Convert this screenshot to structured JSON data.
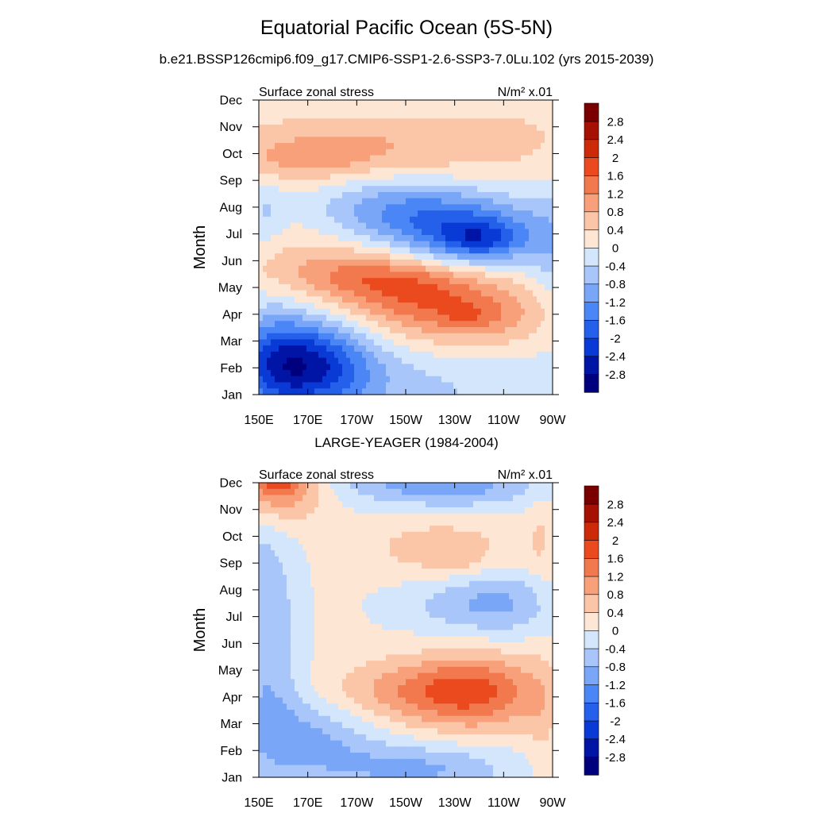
{
  "title": "Equatorial Pacific Ocean (5S-5N)",
  "subtitle": "b.e21.BSSP126cmip6.f09_g17.CMIP6-SSP1-2.6-SSP3-7.0Lu.102 (yrs 2015-2039)",
  "palette": {
    "levels": [
      "-2.8",
      "-2.4",
      "-2",
      "-1.6",
      "-1.2",
      "-0.8",
      "-0.4",
      "0",
      "0.4",
      "0.8",
      "1.2",
      "1.6",
      "2",
      "2.4",
      "2.8"
    ],
    "colors": [
      "#00007f",
      "#0015a6",
      "#0a3ad6",
      "#2460ea",
      "#4a86f5",
      "#7aa6f7",
      "#a8c6fa",
      "#d4e6fb",
      "#fde6d4",
      "#fbc5a8",
      "#f7a07a",
      "#f2784e",
      "#ea4a1e",
      "#cc2a08",
      "#a51204",
      "#7a0000"
    ]
  },
  "chart_data": [
    {
      "type": "heatmap",
      "panel_title": "",
      "left_label": "Surface zonal stress",
      "right_label": "N/m² x.01",
      "ylabel": "Month",
      "x_ticks": [
        "150E",
        "170E",
        "170W",
        "150W",
        "130W",
        "110W",
        "90W"
      ],
      "y_ticks": [
        "Jan",
        "Feb",
        "Mar",
        "Apr",
        "May",
        "Jun",
        "Jul",
        "Aug",
        "Sep",
        "Oct",
        "Nov",
        "Dec"
      ],
      "x_range_deg_east": [
        150,
        270
      ],
      "colorbar_levels": [
        "-2.8",
        "-2.4",
        "-2",
        "-1.6",
        "-1.2",
        "-0.8",
        "-0.4",
        "0",
        "0.4",
        "0.8",
        "1.2",
        "1.6",
        "2",
        "2.4",
        "2.8"
      ],
      "features": [
        {
          "lon": 200,
          "month": 1.2,
          "value": -0.6,
          "slon": 60,
          "smon": 1.2
        },
        {
          "lon": 170,
          "month": 2.0,
          "value": -1.5,
          "slon": 18,
          "smon": 1.1
        },
        {
          "lon": 168,
          "month": 2.5,
          "value": -0.9,
          "slon": 18,
          "smon": 1.2
        },
        {
          "lon": 155,
          "month": 2.6,
          "value": -0.6,
          "slon": 10,
          "smon": 1.6
        },
        {
          "lon": 210,
          "month": 5.0,
          "value": 1.1,
          "slon": 24,
          "smon": 0.9
        },
        {
          "lon": 236,
          "month": 4.0,
          "value": 1.0,
          "slon": 26,
          "smon": 0.9
        },
        {
          "lon": 236,
          "month": 3.9,
          "value": 0.35,
          "slon": 8,
          "smon": 0.35
        },
        {
          "lon": 200,
          "month": 5.3,
          "value": 0.3,
          "slon": 26,
          "smon": 0.45
        },
        {
          "lon": 178,
          "month": 5.8,
          "value": 0.6,
          "slon": 25,
          "smon": 0.8
        },
        {
          "lon": 236,
          "month": 7.0,
          "value": -1.4,
          "slon": 26,
          "smon": 1.0
        },
        {
          "lon": 240,
          "month": 6.8,
          "value": -1.0,
          "slon": 12,
          "smon": 0.5
        },
        {
          "lon": 215,
          "month": 7.8,
          "value": -0.8,
          "slon": 24,
          "smon": 0.9
        },
        {
          "lon": 195,
          "month": 8.2,
          "value": -0.4,
          "slon": 20,
          "smon": 0.8
        },
        {
          "lon": 168,
          "month": 9.8,
          "value": 0.7,
          "slon": 22,
          "smon": 0.6
        },
        {
          "lon": 190,
          "month": 10.5,
          "value": 0.3,
          "slon": 40,
          "smon": 1.0
        },
        {
          "lon": 230,
          "month": 10.5,
          "value": 0.4,
          "slon": 40,
          "smon": 1.2
        },
        {
          "lon": 215,
          "month": 12.0,
          "value": -0.35,
          "slon": 25,
          "smon": 0.6
        },
        {
          "lon": 153,
          "month": 8.0,
          "value": -0.5,
          "slon": 5,
          "smon": 1.0
        },
        {
          "lon": 268,
          "month": 6.0,
          "value": -0.4,
          "slon": 6,
          "smon": 2.0
        }
      ]
    },
    {
      "type": "heatmap",
      "panel_title": "LARGE-YEAGER (1984-2004)",
      "left_label": "Surface zonal stress",
      "right_label": "N/m² x.01",
      "ylabel": "Month",
      "x_ticks": [
        "150E",
        "170E",
        "170W",
        "150W",
        "130W",
        "110W",
        "90W"
      ],
      "y_ticks": [
        "Jan",
        "Feb",
        "Mar",
        "Apr",
        "May",
        "Jun",
        "Jul",
        "Aug",
        "Sep",
        "Oct",
        "Nov",
        "Dec"
      ],
      "x_range_deg_east": [
        150,
        270
      ],
      "colorbar_levels": [
        "-2.8",
        "-2.4",
        "-2",
        "-1.6",
        "-1.2",
        "-0.8",
        "-0.4",
        "0",
        "0.4",
        "0.8",
        "1.2",
        "1.6",
        "2",
        "2.4",
        "2.8"
      ],
      "features": [
        {
          "lon": 158,
          "month": 12.0,
          "value": 1.4,
          "slon": 12,
          "smon": 1.0
        },
        {
          "lon": 158,
          "month": 12.2,
          "value": 0.8,
          "slon": 6,
          "smon": 0.45
        },
        {
          "lon": 220,
          "month": 12.0,
          "value": -0.8,
          "slon": 30,
          "smon": 0.5
        },
        {
          "lon": 230,
          "month": 11.6,
          "value": -0.5,
          "slon": 28,
          "smon": 0.7
        },
        {
          "lon": 225,
          "month": 9.5,
          "value": 0.55,
          "slon": 20,
          "smon": 0.9
        },
        {
          "lon": 232,
          "month": 9.1,
          "value": 0.3,
          "slon": 5,
          "smon": 0.3
        },
        {
          "lon": 250,
          "month": 7.5,
          "value": -0.8,
          "slon": 16,
          "smon": 0.9
        },
        {
          "lon": 225,
          "month": 7.5,
          "value": -0.5,
          "slon": 20,
          "smon": 0.8
        },
        {
          "lon": 152,
          "month": 7.5,
          "value": -0.8,
          "slon": 10,
          "smon": 2.8
        },
        {
          "lon": 240,
          "month": 4.2,
          "value": 1.3,
          "slon": 18,
          "smon": 1.0
        },
        {
          "lon": 213,
          "month": 4.2,
          "value": 0.9,
          "slon": 22,
          "smon": 0.8
        },
        {
          "lon": 172,
          "month": 2.4,
          "value": -0.9,
          "slon": 18,
          "smon": 1.0
        },
        {
          "lon": 215,
          "month": 1.3,
          "value": -1.0,
          "slon": 28,
          "smon": 0.7
        },
        {
          "lon": 155,
          "month": 3.5,
          "value": -0.5,
          "slon": 10,
          "smon": 2.0
        },
        {
          "lon": 265,
          "month": 10.0,
          "value": 0.3,
          "slon": 4,
          "smon": 1.5
        },
        {
          "lon": 265,
          "month": 3.0,
          "value": 0.3,
          "slon": 4,
          "smon": 1.5
        }
      ]
    }
  ]
}
